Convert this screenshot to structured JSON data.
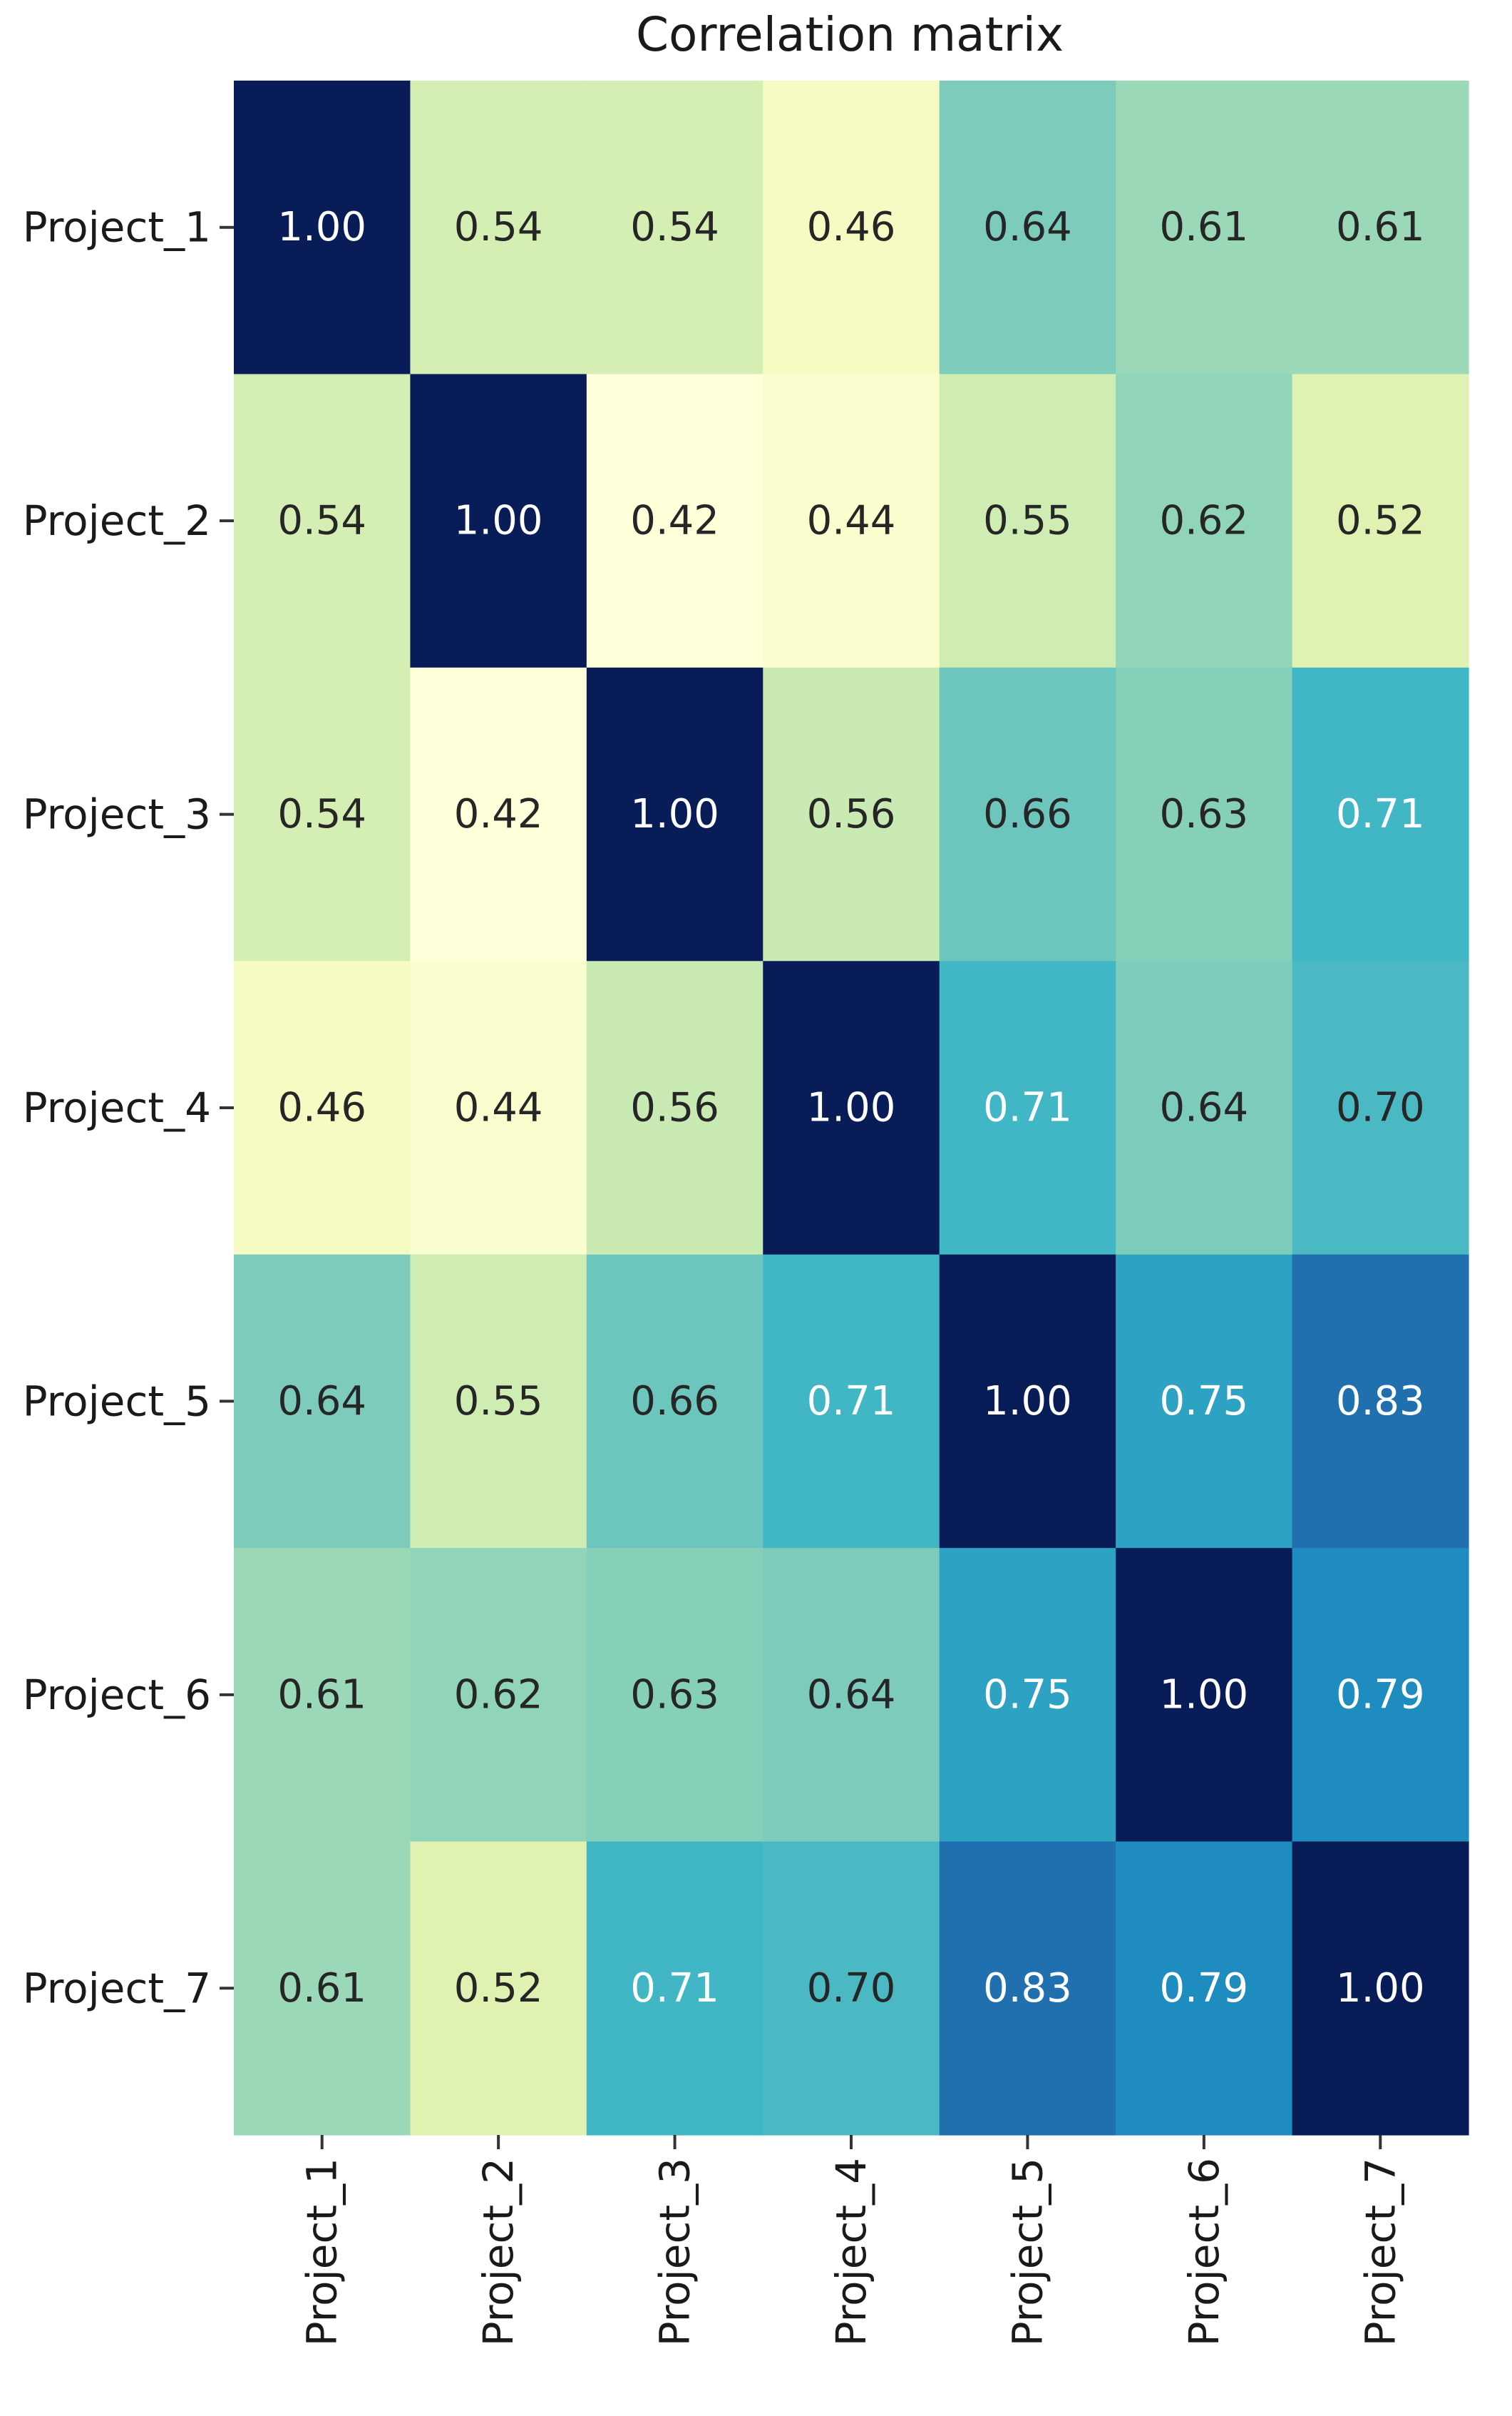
{
  "chart_data": {
    "type": "heatmap",
    "title": "Correlation matrix",
    "xlabel": "",
    "ylabel": "",
    "row_labels": [
      "Project_1",
      "Project_2",
      "Project_3",
      "Project_4",
      "Project_5",
      "Project_6",
      "Project_7"
    ],
    "col_labels": [
      "Project_1",
      "Project_2",
      "Project_3",
      "Project_4",
      "Project_5",
      "Project_6",
      "Project_7"
    ],
    "values": [
      [
        1.0,
        0.54,
        0.54,
        0.46,
        0.64,
        0.61,
        0.61
      ],
      [
        0.54,
        1.0,
        0.42,
        0.44,
        0.55,
        0.62,
        0.52
      ],
      [
        0.54,
        0.42,
        1.0,
        0.56,
        0.66,
        0.63,
        0.71
      ],
      [
        0.46,
        0.44,
        0.56,
        1.0,
        0.71,
        0.64,
        0.7
      ],
      [
        0.64,
        0.55,
        0.66,
        0.71,
        1.0,
        0.75,
        0.83
      ],
      [
        0.61,
        0.62,
        0.63,
        0.64,
        0.75,
        1.0,
        0.79
      ],
      [
        0.61,
        0.52,
        0.71,
        0.7,
        0.83,
        0.79,
        1.0
      ]
    ],
    "value_format": "0.00",
    "colormap": "YlGnBu",
    "value_range": [
      0.42,
      1.0
    ],
    "colorbar": false,
    "grid": false
  }
}
